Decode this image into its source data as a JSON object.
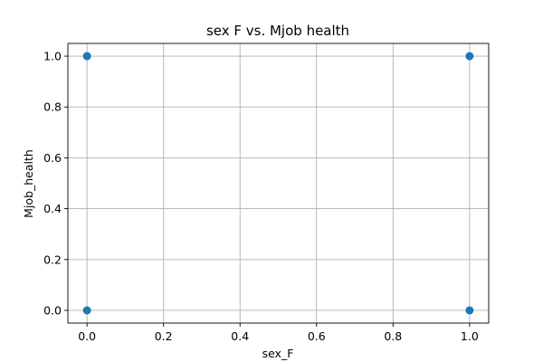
{
  "chart_data": {
    "type": "scatter",
    "title": "sex F vs. Mjob health",
    "xlabel": "sex_F",
    "ylabel": "Mjob_health",
    "x": [
      0,
      0,
      1,
      1
    ],
    "y": [
      0,
      1,
      0,
      1
    ],
    "xlim": [
      -0.05,
      1.05
    ],
    "ylim": [
      -0.05,
      1.05
    ],
    "xticks": [
      "0.0",
      "0.2",
      "0.4",
      "0.6",
      "0.8",
      "1.0"
    ],
    "yticks": [
      "0.0",
      "0.2",
      "0.4",
      "0.6",
      "0.8",
      "1.0"
    ],
    "grid": true,
    "marker_color": "#1f77b4"
  }
}
